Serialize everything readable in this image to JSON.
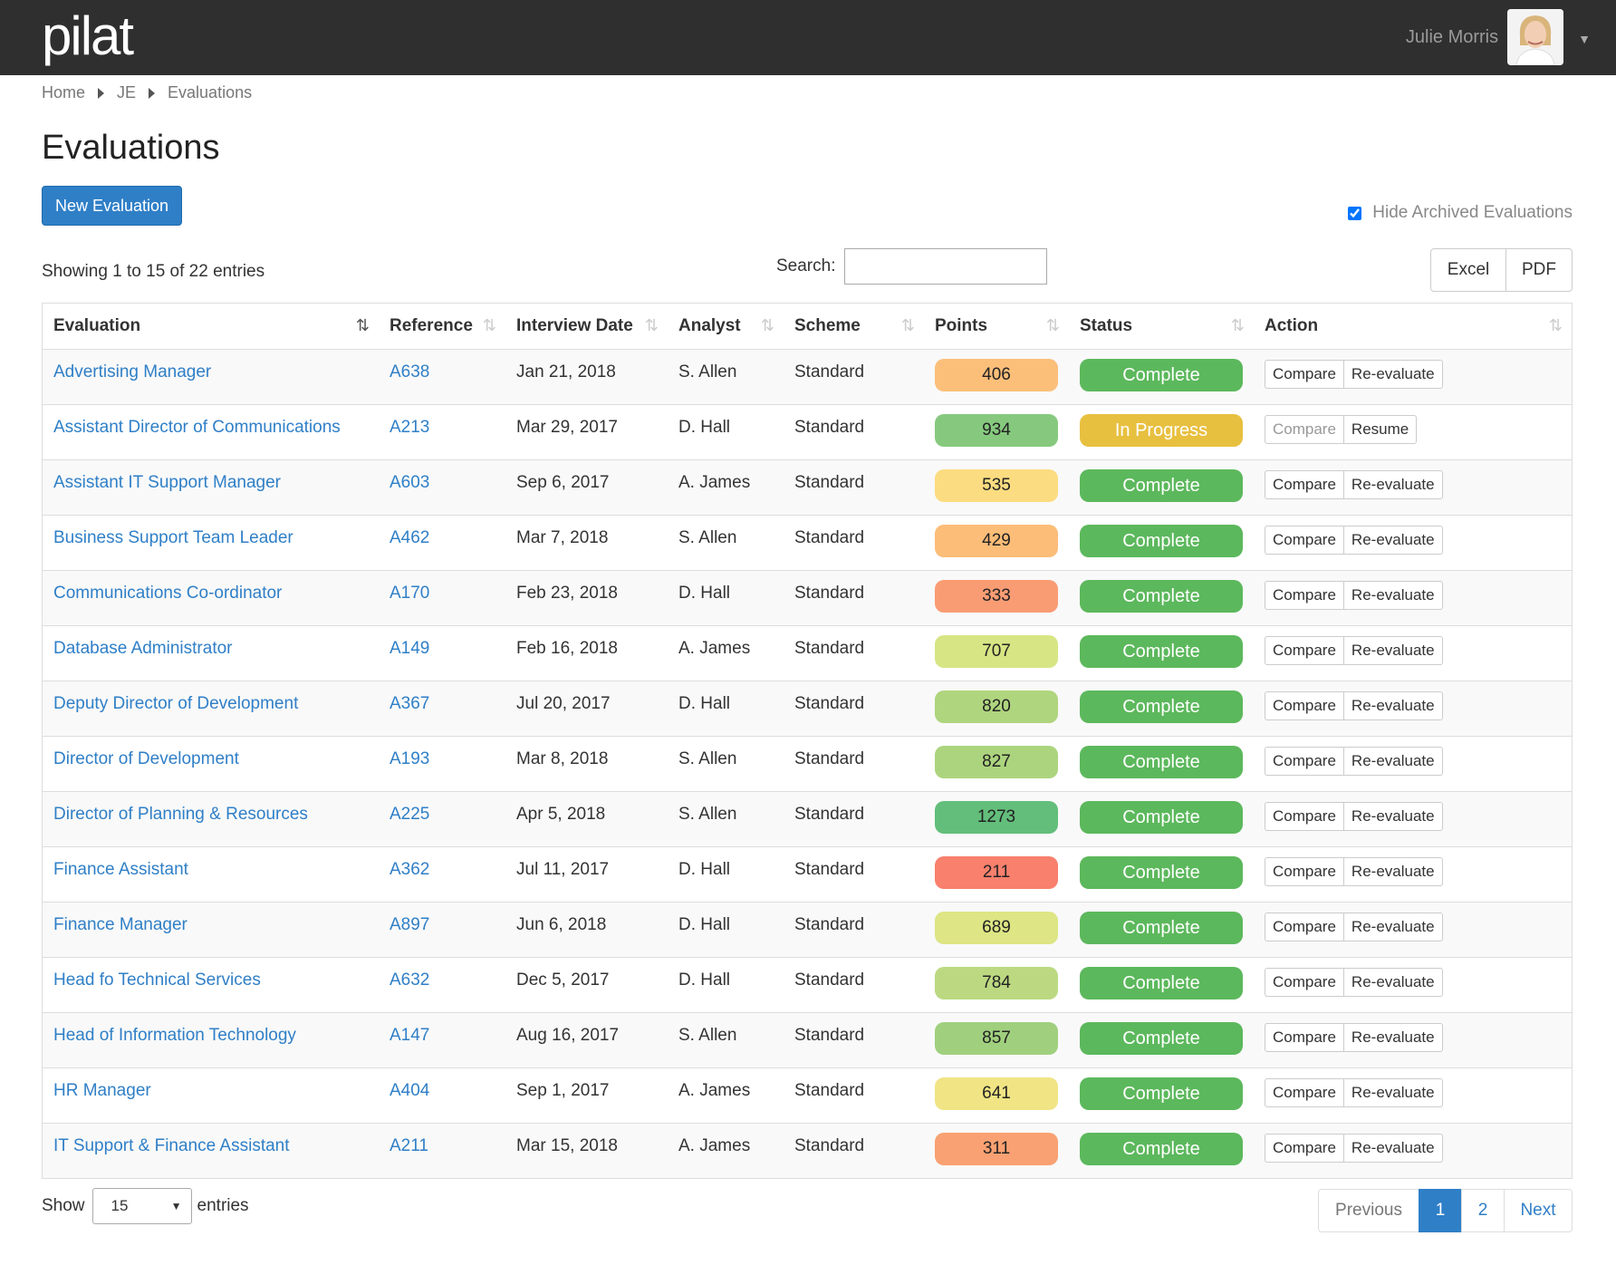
{
  "header": {
    "logo": "pilat",
    "user_name": "Julie Morris"
  },
  "breadcrumb": [
    "Home",
    "JE",
    "Evaluations"
  ],
  "page_title": "Evaluations",
  "new_button": "New Evaluation",
  "hide_archived": {
    "label": "Hide Archived Evaluations",
    "checked": true
  },
  "showing_text": "Showing 1 to 15 of 22 entries",
  "search": {
    "label": "Search:",
    "placeholder": "",
    "value": ""
  },
  "export": {
    "excel": "Excel",
    "pdf": "PDF"
  },
  "table": {
    "columns": [
      "Evaluation",
      "Reference",
      "Interview Date",
      "Analyst",
      "Scheme",
      "Points",
      "Status",
      "Action"
    ],
    "rows": [
      {
        "evaluation": "Advertising Manager",
        "reference": "A638",
        "date": "Jan 21, 2018",
        "analyst": "S. Allen",
        "scheme": "Standard",
        "points": "406",
        "points_color": "#fbbf7a",
        "status": "Complete",
        "status_color": "#5cb85c",
        "action1": "Compare",
        "action2": "Re-evaluate",
        "action1_muted": false
      },
      {
        "evaluation": "Assistant Director of Communications",
        "reference": "A213",
        "date": "Mar 29, 2017",
        "analyst": "D. Hall",
        "scheme": "Standard",
        "points": "934",
        "points_color": "#86c97e",
        "status": "In Progress",
        "status_color": "#e8c040",
        "action1": "Compare",
        "action2": "Resume",
        "action1_muted": true
      },
      {
        "evaluation": "Assistant IT Support Manager",
        "reference": "A603",
        "date": "Sep 6, 2017",
        "analyst": "A. James",
        "scheme": "Standard",
        "points": "535",
        "points_color": "#fcdc80",
        "status": "Complete",
        "status_color": "#5cb85c",
        "action1": "Compare",
        "action2": "Re-evaluate",
        "action1_muted": false
      },
      {
        "evaluation": "Business Support Team Leader",
        "reference": "A462",
        "date": "Mar 7, 2018",
        "analyst": "S. Allen",
        "scheme": "Standard",
        "points": "429",
        "points_color": "#fbbd78",
        "status": "Complete",
        "status_color": "#5cb85c",
        "action1": "Compare",
        "action2": "Re-evaluate",
        "action1_muted": false
      },
      {
        "evaluation": "Communications Co-ordinator",
        "reference": "A170",
        "date": "Feb 23, 2018",
        "analyst": "D. Hall",
        "scheme": "Standard",
        "points": "333",
        "points_color": "#f99c74",
        "status": "Complete",
        "status_color": "#5cb85c",
        "action1": "Compare",
        "action2": "Re-evaluate",
        "action1_muted": false
      },
      {
        "evaluation": "Database Administrator",
        "reference": "A149",
        "date": "Feb 16, 2018",
        "analyst": "A. James",
        "scheme": "Standard",
        "points": "707",
        "points_color": "#d7e584",
        "status": "Complete",
        "status_color": "#5cb85c",
        "action1": "Compare",
        "action2": "Re-evaluate",
        "action1_muted": false
      },
      {
        "evaluation": "Deputy Director of Development",
        "reference": "A367",
        "date": "Jul 20, 2017",
        "analyst": "D. Hall",
        "scheme": "Standard",
        "points": "820",
        "points_color": "#afd57e",
        "status": "Complete",
        "status_color": "#5cb85c",
        "action1": "Compare",
        "action2": "Re-evaluate",
        "action1_muted": false
      },
      {
        "evaluation": "Director of Development",
        "reference": "A193",
        "date": "Mar 8, 2018",
        "analyst": "S. Allen",
        "scheme": "Standard",
        "points": "827",
        "points_color": "#acd47e",
        "status": "Complete",
        "status_color": "#5cb85c",
        "action1": "Compare",
        "action2": "Re-evaluate",
        "action1_muted": false
      },
      {
        "evaluation": "Director of Planning & Resources",
        "reference": "A225",
        "date": "Apr 5, 2018",
        "analyst": "S. Allen",
        "scheme": "Standard",
        "points": "1273",
        "points_color": "#63be7b",
        "status": "Complete",
        "status_color": "#5cb85c",
        "action1": "Compare",
        "action2": "Re-evaluate",
        "action1_muted": false
      },
      {
        "evaluation": "Finance Assistant",
        "reference": "A362",
        "date": "Jul 11, 2017",
        "analyst": "D. Hall",
        "scheme": "Standard",
        "points": "211",
        "points_color": "#f8806d",
        "status": "Complete",
        "status_color": "#5cb85c",
        "action1": "Compare",
        "action2": "Re-evaluate",
        "action1_muted": false
      },
      {
        "evaluation": "Finance Manager",
        "reference": "A897",
        "date": "Jun 6, 2018",
        "analyst": "D. Hall",
        "scheme": "Standard",
        "points": "689",
        "points_color": "#dde584",
        "status": "Complete",
        "status_color": "#5cb85c",
        "action1": "Compare",
        "action2": "Re-evaluate",
        "action1_muted": false
      },
      {
        "evaluation": "Head fo Technical Services",
        "reference": "A632",
        "date": "Dec 5, 2017",
        "analyst": "D. Hall",
        "scheme": "Standard",
        "points": "784",
        "points_color": "#bcd982",
        "status": "Complete",
        "status_color": "#5cb85c",
        "action1": "Compare",
        "action2": "Re-evaluate",
        "action1_muted": false
      },
      {
        "evaluation": "Head of Information Technology",
        "reference": "A147",
        "date": "Aug 16, 2017",
        "analyst": "S. Allen",
        "scheme": "Standard",
        "points": "857",
        "points_color": "#a0d07e",
        "status": "Complete",
        "status_color": "#5cb85c",
        "action1": "Compare",
        "action2": "Re-evaluate",
        "action1_muted": false
      },
      {
        "evaluation": "HR Manager",
        "reference": "A404",
        "date": "Sep 1, 2017",
        "analyst": "A. James",
        "scheme": "Standard",
        "points": "641",
        "points_color": "#f0e484",
        "status": "Complete",
        "status_color": "#5cb85c",
        "action1": "Compare",
        "action2": "Re-evaluate",
        "action1_muted": false
      },
      {
        "evaluation": "IT Support & Finance Assistant",
        "reference": "A211",
        "date": "Mar 15, 2018",
        "analyst": "A. James",
        "scheme": "Standard",
        "points": "311",
        "points_color": "#f9a172",
        "status": "Complete",
        "status_color": "#5cb85c",
        "action1": "Compare",
        "action2": "Re-evaluate",
        "action1_muted": false
      }
    ]
  },
  "footer": {
    "show_label": "Show",
    "entries_label": "entries",
    "page_length": "15",
    "previous": "Previous",
    "pages": [
      "1",
      "2"
    ],
    "current_page": "1",
    "next": "Next"
  },
  "colors": {
    "primary": "#2f7fc7",
    "topbar": "#2f2f2f",
    "complete": "#5cb85c",
    "in_progress": "#e8c040"
  }
}
